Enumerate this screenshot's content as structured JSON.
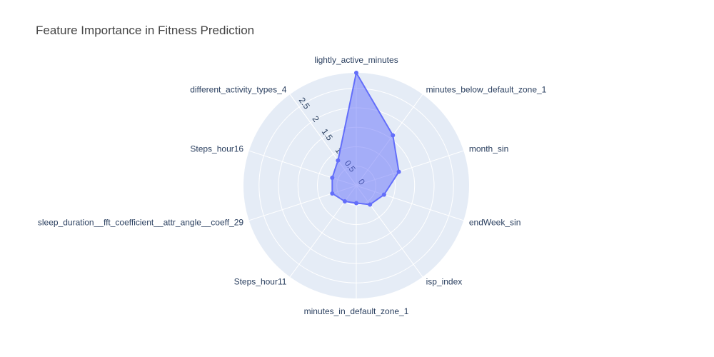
{
  "chart_data": {
    "type": "radar",
    "title": "Feature Importance in Fitness Prediction",
    "categories": [
      "lightly_active_minutes",
      "minutes_below_default_zone_1",
      "month_sin",
      "endWeek_sin",
      "isp_index",
      "minutes_in_default_zone_1",
      "Steps_hour11",
      "sleep_duration__fft_coefficient__attr_angle__coeff_29",
      "Steps_hour16",
      "different_activity_types_4"
    ],
    "values": [
      2.9,
      1.6,
      1.15,
      0.75,
      0.6,
      0.45,
      0.5,
      0.65,
      0.65,
      0.8
    ],
    "radial_range": [
      0,
      2.9
    ],
    "radial_ticks": [
      0,
      0.5,
      1,
      1.5,
      2,
      2.5
    ],
    "radial_tick_labels": [
      "0",
      "0.5",
      "1",
      "1.5",
      "2",
      "2.5"
    ],
    "colors": {
      "line": "#636efa",
      "fill": "rgba(99,110,250,0.5)",
      "bg": "#e5ecf6",
      "grid": "#ffffff"
    },
    "grid": true
  }
}
